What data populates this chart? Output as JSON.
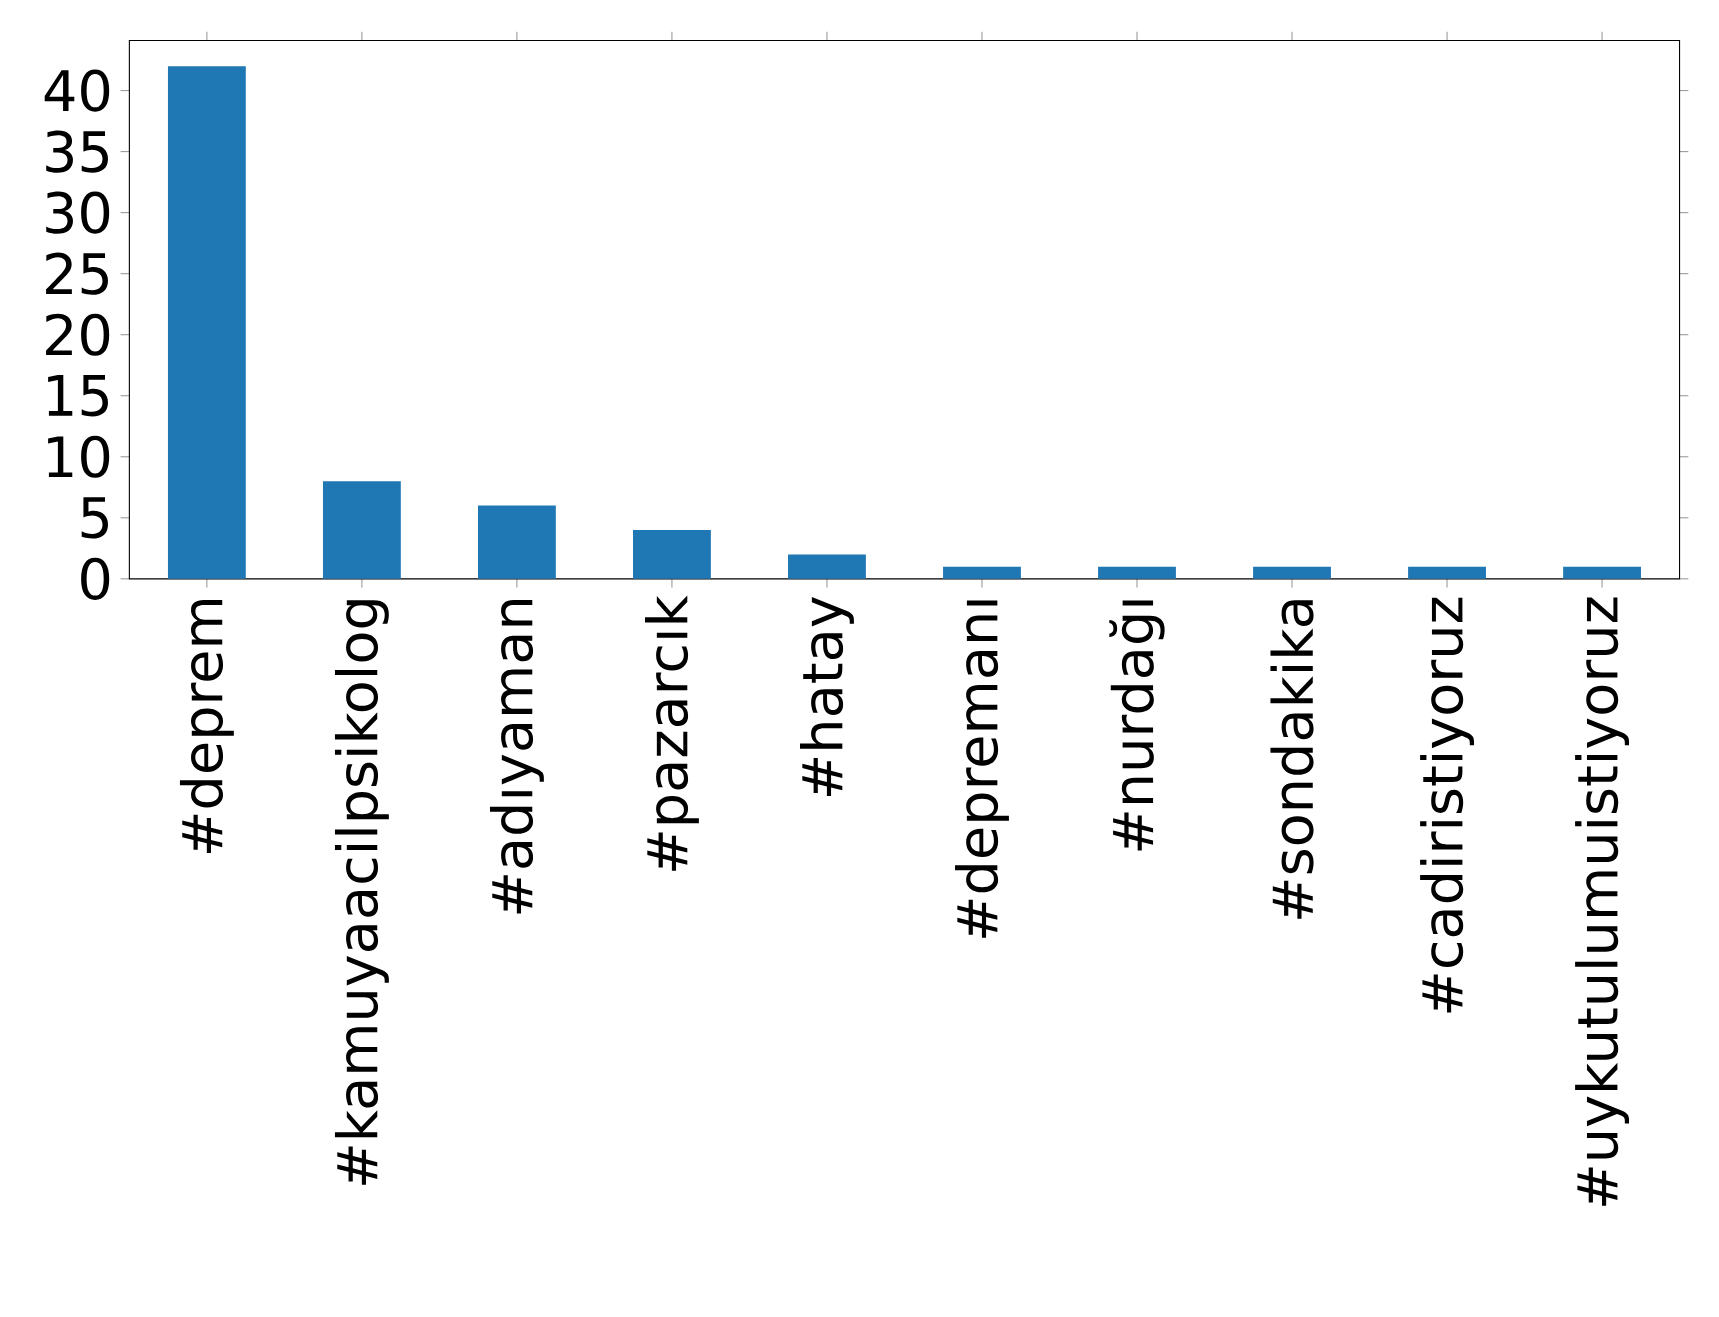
{
  "chart_data": {
    "type": "bar",
    "categories": [
      "#deprem",
      "#kamuyaacilpsikolog",
      "#adıyaman",
      "#pazarcık",
      "#hatay",
      "#depremanı",
      "#nurdağı",
      "#sondakika",
      "#cadiristiyoruz",
      "#uykutulumuistiyoruz"
    ],
    "values": [
      42,
      8,
      6,
      4,
      2,
      1,
      1,
      1,
      1,
      1
    ],
    "color": "#1f77b4",
    "ylim": [
      0,
      44.1
    ],
    "yticks": [
      0,
      5,
      10,
      15,
      20,
      25,
      30,
      35,
      40
    ],
    "grid": false
  }
}
